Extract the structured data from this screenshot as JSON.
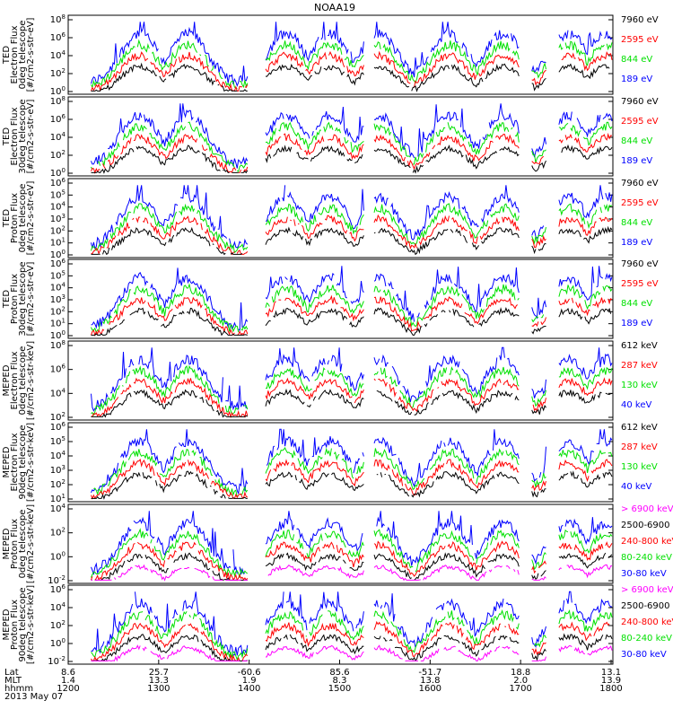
{
  "title": "NOAA19",
  "colors": {
    "blue": "#0000ff",
    "red": "#ff0000",
    "green": "#00e000",
    "black": "#000000",
    "magenta": "#ff00ff"
  },
  "footer": {
    "row_labels": [
      "Lat",
      "MLT",
      "hhmm"
    ],
    "date": "2013 May 07",
    "columns": [
      {
        "lat": "8.6",
        "mlt": "1.4",
        "hhmm": "1200"
      },
      {
        "lat": "25.7",
        "mlt": "13.3",
        "hhmm": "1300"
      },
      {
        "lat": "-60.6",
        "mlt": "1.9",
        "hhmm": "1400"
      },
      {
        "lat": "85.6",
        "mlt": "8.3",
        "hhmm": "1500"
      },
      {
        "lat": "-51.7",
        "mlt": "13.8",
        "hhmm": "1600"
      },
      {
        "lat": "18.8",
        "mlt": "2.0",
        "hhmm": "1700"
      },
      {
        "lat": "13.1",
        "mlt": "13.9",
        "hhmm": "1800"
      }
    ]
  },
  "chart_data": [
    {
      "type": "line",
      "instrument": "TED",
      "ylabel_lines": [
        "TED",
        "Electron Flux",
        "0deg telescope",
        "[#/cm2-s-str-eV]"
      ],
      "yticks": [
        "10^0",
        "10^2",
        "10^4",
        "10^6",
        "10^8"
      ],
      "ylog": true,
      "series": [
        {
          "name": "7960 eV",
          "color": "#000000"
        },
        {
          "name": "2595 eV",
          "color": "#ff0000"
        },
        {
          "name": "844 eV",
          "color": "#00e000"
        },
        {
          "name": "189 eV",
          "color": "#0000ff"
        }
      ]
    },
    {
      "type": "line",
      "instrument": "TED",
      "ylabel_lines": [
        "TED",
        "Electron Flux",
        "30deg telescope",
        "[#/cm2-s-str-eV]"
      ],
      "yticks": [
        "10^0",
        "10^2",
        "10^4",
        "10^6",
        "10^8"
      ],
      "ylog": true,
      "series": [
        {
          "name": "7960 eV",
          "color": "#000000"
        },
        {
          "name": "2595 eV",
          "color": "#ff0000"
        },
        {
          "name": "844 eV",
          "color": "#00e000"
        },
        {
          "name": "189 eV",
          "color": "#0000ff"
        }
      ]
    },
    {
      "type": "line",
      "instrument": "TED",
      "ylabel_lines": [
        "TED",
        "Proton Flux",
        "0deg telescope",
        "[#/cm2-s-str-eV]"
      ],
      "yticks": [
        "10^0",
        "10^1",
        "10^2",
        "10^3",
        "10^4",
        "10^5",
        "10^6"
      ],
      "ylog": true,
      "series": [
        {
          "name": "7960 eV",
          "color": "#000000"
        },
        {
          "name": "2595 eV",
          "color": "#ff0000"
        },
        {
          "name": "844 eV",
          "color": "#00e000"
        },
        {
          "name": "189 eV",
          "color": "#0000ff"
        }
      ]
    },
    {
      "type": "line",
      "instrument": "TED",
      "ylabel_lines": [
        "TED",
        "Proton Flux",
        "30deg telescope",
        "[#/cm2-s-str-eV]"
      ],
      "yticks": [
        "10^0",
        "10^1",
        "10^2",
        "10^3",
        "10^4",
        "10^5",
        "10^6"
      ],
      "ylog": true,
      "series": [
        {
          "name": "7960 eV",
          "color": "#000000"
        },
        {
          "name": "2595 eV",
          "color": "#ff0000"
        },
        {
          "name": "844 eV",
          "color": "#00e000"
        },
        {
          "name": "189 eV",
          "color": "#0000ff"
        }
      ]
    },
    {
      "type": "line",
      "instrument": "MEPED",
      "ylabel_lines": [
        "MEPED",
        "Electron Flux",
        "0deg telescope",
        "[#/cm2-s-str-keV]"
      ],
      "yticks": [
        "10^2",
        "10^4",
        "10^6",
        "10^8"
      ],
      "ylog": true,
      "series": [
        {
          "name": "612 keV",
          "color": "#000000"
        },
        {
          "name": "287 keV",
          "color": "#ff0000"
        },
        {
          "name": "130 keV",
          "color": "#00e000"
        },
        {
          "name": "40 keV",
          "color": "#0000ff"
        }
      ]
    },
    {
      "type": "line",
      "instrument": "MEPED",
      "ylabel_lines": [
        "MEPED",
        "Electron Flux",
        "90deg telescope",
        "[#/cm2-s-str-keV]"
      ],
      "yticks": [
        "10^1",
        "10^2",
        "10^3",
        "10^4",
        "10^5",
        "10^6"
      ],
      "ylog": true,
      "series": [
        {
          "name": "612 keV",
          "color": "#000000"
        },
        {
          "name": "287 keV",
          "color": "#ff0000"
        },
        {
          "name": "130 keV",
          "color": "#00e000"
        },
        {
          "name": "40 keV",
          "color": "#0000ff"
        }
      ]
    },
    {
      "type": "line",
      "instrument": "MEPED",
      "ylabel_lines": [
        "MEPED",
        "Proton Flux",
        "0deg telescope",
        "[#/cm2-s-str-keV]"
      ],
      "yticks": [
        "10^-2",
        "10^0",
        "10^2",
        "10^4"
      ],
      "ylog": true,
      "series": [
        {
          "name": "> 6900 keV",
          "color": "#ff00ff"
        },
        {
          "name": "2500-6900",
          "color": "#000000"
        },
        {
          "name": "240-800 keV",
          "color": "#ff0000"
        },
        {
          "name": "80-240 keV",
          "color": "#00e000"
        },
        {
          "name": "30-80 keV",
          "color": "#0000ff"
        }
      ]
    },
    {
      "type": "line",
      "instrument": "MEPED",
      "ylabel_lines": [
        "MEPED",
        "Proton Flux",
        "90deg telescope",
        "[#/cm2-s-str-keV]"
      ],
      "yticks": [
        "10^-2",
        "10^0",
        "10^2",
        "10^4",
        "10^6"
      ],
      "ylog": true,
      "series": [
        {
          "name": "> 6900 keV",
          "color": "#ff00ff"
        },
        {
          "name": "2500-6900",
          "color": "#000000"
        },
        {
          "name": "240-800 keV",
          "color": "#ff0000"
        },
        {
          "name": "80-240 keV",
          "color": "#00e000"
        },
        {
          "name": "30-80 keV",
          "color": "#0000ff"
        }
      ]
    }
  ]
}
